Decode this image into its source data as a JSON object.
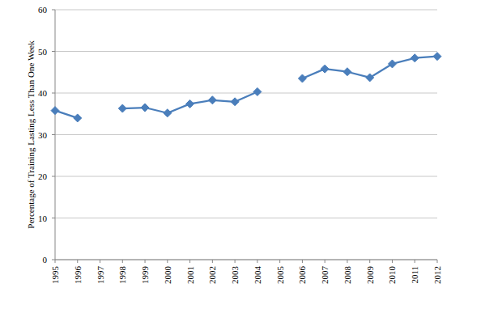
{
  "chart_data": {
    "type": "line",
    "y_label": "Percentage of Training Lasting Less Than One Week",
    "categories": [
      "1995",
      "1996",
      "1997",
      "1998",
      "1999",
      "2000",
      "2001",
      "2002",
      "2003",
      "2004",
      "2005",
      "2006",
      "2007",
      "2008",
      "2009",
      "2010",
      "2011",
      "2012"
    ],
    "values": [
      35.8,
      34.0,
      null,
      36.3,
      36.5,
      35.2,
      37.4,
      38.3,
      37.9,
      40.3,
      null,
      43.5,
      45.8,
      45.1,
      43.7,
      47.0,
      48.4,
      48.8
    ],
    "color": "#4a7ebb",
    "marker": "diamond",
    "ylim": [
      0,
      60
    ],
    "yticks": [
      0,
      10,
      20,
      30,
      40,
      50,
      60
    ],
    "grid": true
  }
}
